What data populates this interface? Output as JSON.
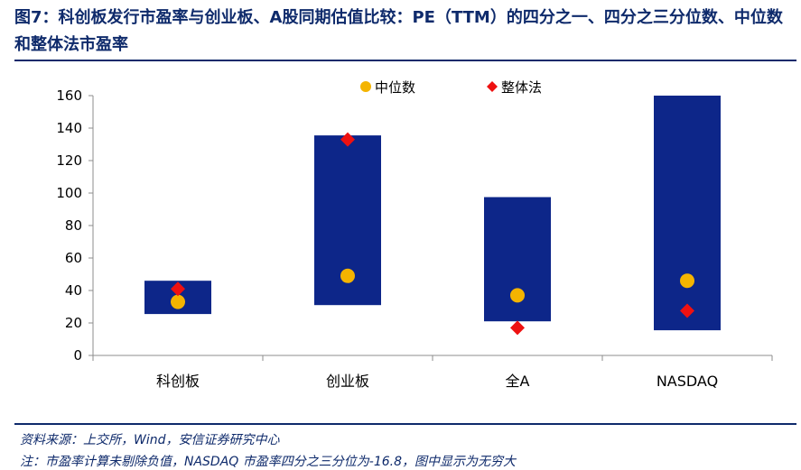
{
  "title": "图7：科创板发行市盈率与创业板、A股同期估值比较：PE（TTM）的四分之一、四分之三分位数、中位数和整体法市盈率",
  "footnotes": {
    "source": "资料来源：上交所，Wind，安信证券研究中心",
    "note": "注：市盈率计算未剔除负值，NASDAQ 市盈率四分之三分位为-16.8，图中显示为无穷大"
  },
  "colors": {
    "bar": "#0d2689",
    "median": "#f4b400",
    "overall": "#ee1111",
    "accent": "#0e2a6b"
  },
  "chart_data": {
    "type": "bar",
    "subtype": "floating range (25th–75th percentile)",
    "categories": [
      "科创板",
      "创业板",
      "全A",
      "NASDAQ"
    ],
    "ylim": [
      0,
      160
    ],
    "yticks": [
      0,
      20,
      40,
      60,
      80,
      100,
      120,
      140,
      160
    ],
    "grid": false,
    "legend_position": "top",
    "ranges": [
      {
        "low": 25.5,
        "high": 46
      },
      {
        "low": 31,
        "high": 135.5
      },
      {
        "low": 21,
        "high": 97.5
      },
      {
        "low": 15.5,
        "high": 160
      }
    ],
    "series": [
      {
        "name": "中位数",
        "marker": "circle",
        "values": [
          33,
          49,
          37,
          46
        ]
      },
      {
        "name": "整体法",
        "marker": "diamond",
        "values": [
          41,
          133,
          17,
          27.5
        ]
      }
    ]
  }
}
